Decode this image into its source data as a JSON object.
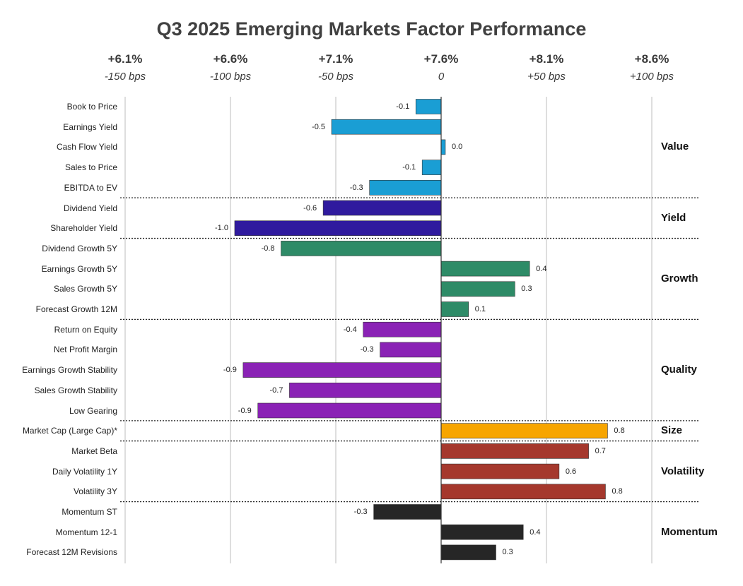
{
  "chart_data": {
    "type": "bar",
    "orientation": "horizontal",
    "title": "Q3 2025 Emerging Markets Factor Performance",
    "baseline_return": "+7.6%",
    "axis_ticks": [
      {
        "return": "+6.1%",
        "bps": "-150 bps",
        "value": -1.5
      },
      {
        "return": "+6.6%",
        "bps": "-100 bps",
        "value": -1.0
      },
      {
        "return": "+7.1%",
        "bps": "-50 bps",
        "value": -0.5
      },
      {
        "return": "+7.6%",
        "bps": "0",
        "value": 0
      },
      {
        "return": "+8.1%",
        "bps": "+50 bps",
        "value": 0.5
      },
      {
        "return": "+8.6%",
        "bps": "+100 bps",
        "value": 1.0
      }
    ],
    "xlim": [
      -1.5,
      1.0
    ],
    "grid": true,
    "groups": [
      {
        "name": "Value",
        "color": "#1a9ed4",
        "factors": [
          {
            "name": "Book to Price",
            "value": -0.12,
            "label": "-0.1"
          },
          {
            "name": "Earnings Yield",
            "value": -0.52,
            "label": "-0.5"
          },
          {
            "name": "Cash Flow Yield",
            "value": 0.02,
            "label": "0.0"
          },
          {
            "name": "Sales to Price",
            "value": -0.09,
            "label": "-0.1"
          },
          {
            "name": "EBITDA to EV",
            "value": -0.34,
            "label": "-0.3"
          }
        ]
      },
      {
        "name": "Yield",
        "color": "#2f1a9e",
        "factors": [
          {
            "name": "Dividend Yield",
            "value": -0.56,
            "label": "-0.6"
          },
          {
            "name": "Shareholder Yield",
            "value": -0.98,
            "label": "-1.0"
          }
        ]
      },
      {
        "name": "Growth",
        "color": "#2e8b67",
        "factors": [
          {
            "name": "Dividend Growth 5Y",
            "value": -0.76,
            "label": "-0.8"
          },
          {
            "name": "Earnings Growth 5Y",
            "value": 0.42,
            "label": "0.4"
          },
          {
            "name": "Sales Growth 5Y",
            "value": 0.35,
            "label": "0.3"
          },
          {
            "name": "Forecast Growth 12M",
            "value": 0.13,
            "label": "0.1"
          }
        ]
      },
      {
        "name": "Quality",
        "color": "#8a22b5",
        "factors": [
          {
            "name": "Return on Equity",
            "value": -0.37,
            "label": "-0.4"
          },
          {
            "name": "Net Profit Margin",
            "value": -0.29,
            "label": "-0.3"
          },
          {
            "name": "Earnings Growth Stability",
            "value": -0.94,
            "label": "-0.9"
          },
          {
            "name": "Sales Growth Stability",
            "value": -0.72,
            "label": "-0.7"
          },
          {
            "name": "Low Gearing",
            "value": -0.87,
            "label": "-0.9"
          }
        ]
      },
      {
        "name": "Size",
        "color": "#f7a500",
        "factors": [
          {
            "name": "Market Cap (Large Cap)*",
            "value": 0.79,
            "label": "0.8"
          }
        ]
      },
      {
        "name": "Volatility",
        "color": "#a5382d",
        "factors": [
          {
            "name": "Market Beta",
            "value": 0.7,
            "label": "0.7"
          },
          {
            "name": "Daily Volatility 1Y",
            "value": 0.56,
            "label": "0.6"
          },
          {
            "name": "Volatility 3Y",
            "value": 0.78,
            "label": "0.8"
          }
        ]
      },
      {
        "name": "Momentum",
        "color": "#262626",
        "factors": [
          {
            "name": "Momentum ST",
            "value": -0.32,
            "label": "-0.3"
          },
          {
            "name": "Momentum 12-1",
            "value": 0.39,
            "label": "0.4"
          },
          {
            "name": "Forecast 12M Revisions",
            "value": 0.26,
            "label": "0.3"
          }
        ]
      }
    ]
  }
}
